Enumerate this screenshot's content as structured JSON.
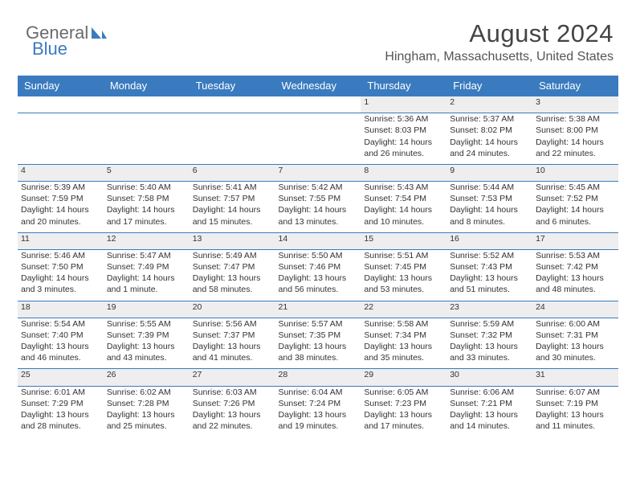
{
  "logo": {
    "word1": "General",
    "word2": "Blue"
  },
  "header": {
    "title": "August 2024",
    "subtitle": "Hingham, Massachusetts, United States"
  },
  "colors": {
    "header_bg": "#3a7bbf",
    "header_text": "#ffffff",
    "daynum_bg": "#eeeeee",
    "rule": "#3a7bbf",
    "body_text": "#333333",
    "title_text": "#444444"
  },
  "weekdays": [
    "Sunday",
    "Monday",
    "Tuesday",
    "Wednesday",
    "Thursday",
    "Friday",
    "Saturday"
  ],
  "weeks": [
    [
      null,
      null,
      null,
      null,
      {
        "n": "1",
        "sunrise": "5:36 AM",
        "sunset": "8:03 PM",
        "daylight": "14 hours and 26 minutes."
      },
      {
        "n": "2",
        "sunrise": "5:37 AM",
        "sunset": "8:02 PM",
        "daylight": "14 hours and 24 minutes."
      },
      {
        "n": "3",
        "sunrise": "5:38 AM",
        "sunset": "8:00 PM",
        "daylight": "14 hours and 22 minutes."
      }
    ],
    [
      {
        "n": "4",
        "sunrise": "5:39 AM",
        "sunset": "7:59 PM",
        "daylight": "14 hours and 20 minutes."
      },
      {
        "n": "5",
        "sunrise": "5:40 AM",
        "sunset": "7:58 PM",
        "daylight": "14 hours and 17 minutes."
      },
      {
        "n": "6",
        "sunrise": "5:41 AM",
        "sunset": "7:57 PM",
        "daylight": "14 hours and 15 minutes."
      },
      {
        "n": "7",
        "sunrise": "5:42 AM",
        "sunset": "7:55 PM",
        "daylight": "14 hours and 13 minutes."
      },
      {
        "n": "8",
        "sunrise": "5:43 AM",
        "sunset": "7:54 PM",
        "daylight": "14 hours and 10 minutes."
      },
      {
        "n": "9",
        "sunrise": "5:44 AM",
        "sunset": "7:53 PM",
        "daylight": "14 hours and 8 minutes."
      },
      {
        "n": "10",
        "sunrise": "5:45 AM",
        "sunset": "7:52 PM",
        "daylight": "14 hours and 6 minutes."
      }
    ],
    [
      {
        "n": "11",
        "sunrise": "5:46 AM",
        "sunset": "7:50 PM",
        "daylight": "14 hours and 3 minutes."
      },
      {
        "n": "12",
        "sunrise": "5:47 AM",
        "sunset": "7:49 PM",
        "daylight": "14 hours and 1 minute."
      },
      {
        "n": "13",
        "sunrise": "5:49 AM",
        "sunset": "7:47 PM",
        "daylight": "13 hours and 58 minutes."
      },
      {
        "n": "14",
        "sunrise": "5:50 AM",
        "sunset": "7:46 PM",
        "daylight": "13 hours and 56 minutes."
      },
      {
        "n": "15",
        "sunrise": "5:51 AM",
        "sunset": "7:45 PM",
        "daylight": "13 hours and 53 minutes."
      },
      {
        "n": "16",
        "sunrise": "5:52 AM",
        "sunset": "7:43 PM",
        "daylight": "13 hours and 51 minutes."
      },
      {
        "n": "17",
        "sunrise": "5:53 AM",
        "sunset": "7:42 PM",
        "daylight": "13 hours and 48 minutes."
      }
    ],
    [
      {
        "n": "18",
        "sunrise": "5:54 AM",
        "sunset": "7:40 PM",
        "daylight": "13 hours and 46 minutes."
      },
      {
        "n": "19",
        "sunrise": "5:55 AM",
        "sunset": "7:39 PM",
        "daylight": "13 hours and 43 minutes."
      },
      {
        "n": "20",
        "sunrise": "5:56 AM",
        "sunset": "7:37 PM",
        "daylight": "13 hours and 41 minutes."
      },
      {
        "n": "21",
        "sunrise": "5:57 AM",
        "sunset": "7:35 PM",
        "daylight": "13 hours and 38 minutes."
      },
      {
        "n": "22",
        "sunrise": "5:58 AM",
        "sunset": "7:34 PM",
        "daylight": "13 hours and 35 minutes."
      },
      {
        "n": "23",
        "sunrise": "5:59 AM",
        "sunset": "7:32 PM",
        "daylight": "13 hours and 33 minutes."
      },
      {
        "n": "24",
        "sunrise": "6:00 AM",
        "sunset": "7:31 PM",
        "daylight": "13 hours and 30 minutes."
      }
    ],
    [
      {
        "n": "25",
        "sunrise": "6:01 AM",
        "sunset": "7:29 PM",
        "daylight": "13 hours and 28 minutes."
      },
      {
        "n": "26",
        "sunrise": "6:02 AM",
        "sunset": "7:28 PM",
        "daylight": "13 hours and 25 minutes."
      },
      {
        "n": "27",
        "sunrise": "6:03 AM",
        "sunset": "7:26 PM",
        "daylight": "13 hours and 22 minutes."
      },
      {
        "n": "28",
        "sunrise": "6:04 AM",
        "sunset": "7:24 PM",
        "daylight": "13 hours and 19 minutes."
      },
      {
        "n": "29",
        "sunrise": "6:05 AM",
        "sunset": "7:23 PM",
        "daylight": "13 hours and 17 minutes."
      },
      {
        "n": "30",
        "sunrise": "6:06 AM",
        "sunset": "7:21 PM",
        "daylight": "13 hours and 14 minutes."
      },
      {
        "n": "31",
        "sunrise": "6:07 AM",
        "sunset": "7:19 PM",
        "daylight": "13 hours and 11 minutes."
      }
    ]
  ],
  "labels": {
    "sunrise": "Sunrise: ",
    "sunset": "Sunset: ",
    "daylight": "Daylight: "
  }
}
